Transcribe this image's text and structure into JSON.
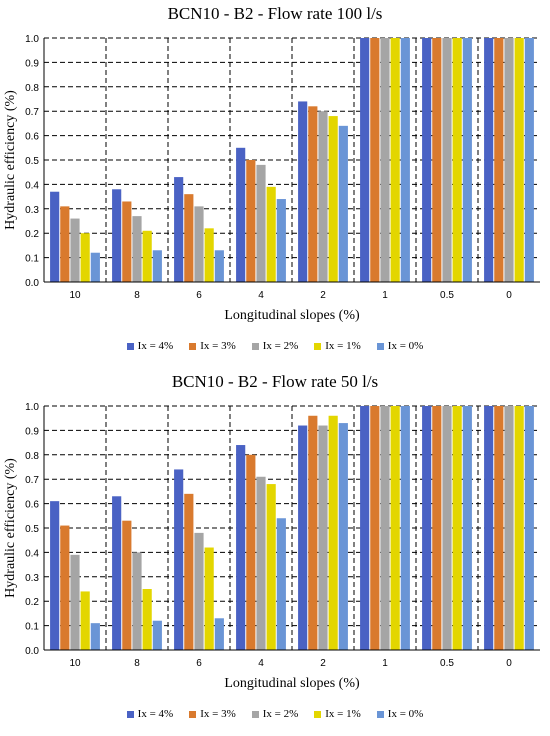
{
  "chart_data": [
    {
      "type": "bar",
      "title": "BCN10 - B2 - Flow rate 100 l/s",
      "xlabel": "Longitudinal slopes (%)",
      "ylabel": "Hydraulic efficiency (%)",
      "ylim": [
        0,
        1
      ],
      "yticks": [
        "0.0",
        "0.1",
        "0.2",
        "0.3",
        "0.4",
        "0.5",
        "0.6",
        "0.7",
        "0.8",
        "0.9",
        "1.0"
      ],
      "categories": [
        "10",
        "8",
        "6",
        "4",
        "2",
        "1",
        "0.5",
        "0"
      ],
      "grid": true,
      "legend_position": "bottom",
      "series": [
        {
          "name": "Ix = 4%",
          "color": "#4a62c4",
          "values": [
            0.37,
            0.38,
            0.43,
            0.55,
            0.74,
            1.0,
            1.0,
            1.0
          ]
        },
        {
          "name": "Ix = 3%",
          "color": "#d97a2e",
          "values": [
            0.31,
            0.33,
            0.36,
            0.5,
            0.72,
            1.0,
            1.0,
            1.0
          ]
        },
        {
          "name": "Ix = 2%",
          "color": "#a5a5a5",
          "values": [
            0.26,
            0.27,
            0.31,
            0.48,
            0.7,
            1.0,
            1.0,
            1.0
          ]
        },
        {
          "name": "Ix = 1%",
          "color": "#e3d600",
          "values": [
            0.2,
            0.21,
            0.22,
            0.39,
            0.68,
            1.0,
            1.0,
            1.0
          ]
        },
        {
          "name": "Ix = 0%",
          "color": "#6a95d6",
          "values": [
            0.12,
            0.13,
            0.13,
            0.34,
            0.64,
            1.0,
            1.0,
            1.0
          ]
        }
      ]
    },
    {
      "type": "bar",
      "title": "BCN10 - B2 - Flow rate 50 l/s",
      "xlabel": "Longitudinal slopes (%)",
      "ylabel": "Hydraulic efficiency (%)",
      "ylim": [
        0,
        1
      ],
      "yticks": [
        "0.0",
        "0.1",
        "0.2",
        "0.3",
        "0.4",
        "0.5",
        "0.6",
        "0.7",
        "0.8",
        "0.9",
        "1.0"
      ],
      "categories": [
        "10",
        "8",
        "6",
        "4",
        "2",
        "1",
        "0.5",
        "0"
      ],
      "grid": true,
      "legend_position": "bottom",
      "series": [
        {
          "name": "Ix = 4%",
          "color": "#4a62c4",
          "values": [
            0.61,
            0.63,
            0.74,
            0.84,
            0.92,
            1.0,
            1.0,
            1.0
          ]
        },
        {
          "name": "Ix = 3%",
          "color": "#d97a2e",
          "values": [
            0.51,
            0.53,
            0.64,
            0.8,
            0.96,
            1.0,
            1.0,
            1.0
          ]
        },
        {
          "name": "Ix = 2%",
          "color": "#a5a5a5",
          "values": [
            0.39,
            0.4,
            0.48,
            0.71,
            0.92,
            1.0,
            1.0,
            1.0
          ]
        },
        {
          "name": "Ix = 1%",
          "color": "#e3d600",
          "values": [
            0.24,
            0.25,
            0.42,
            0.68,
            0.96,
            1.0,
            1.0,
            1.0
          ]
        },
        {
          "name": "Ix = 0%",
          "color": "#6a95d6",
          "values": [
            0.11,
            0.12,
            0.13,
            0.54,
            0.93,
            1.0,
            1.0,
            1.0
          ]
        }
      ]
    }
  ]
}
